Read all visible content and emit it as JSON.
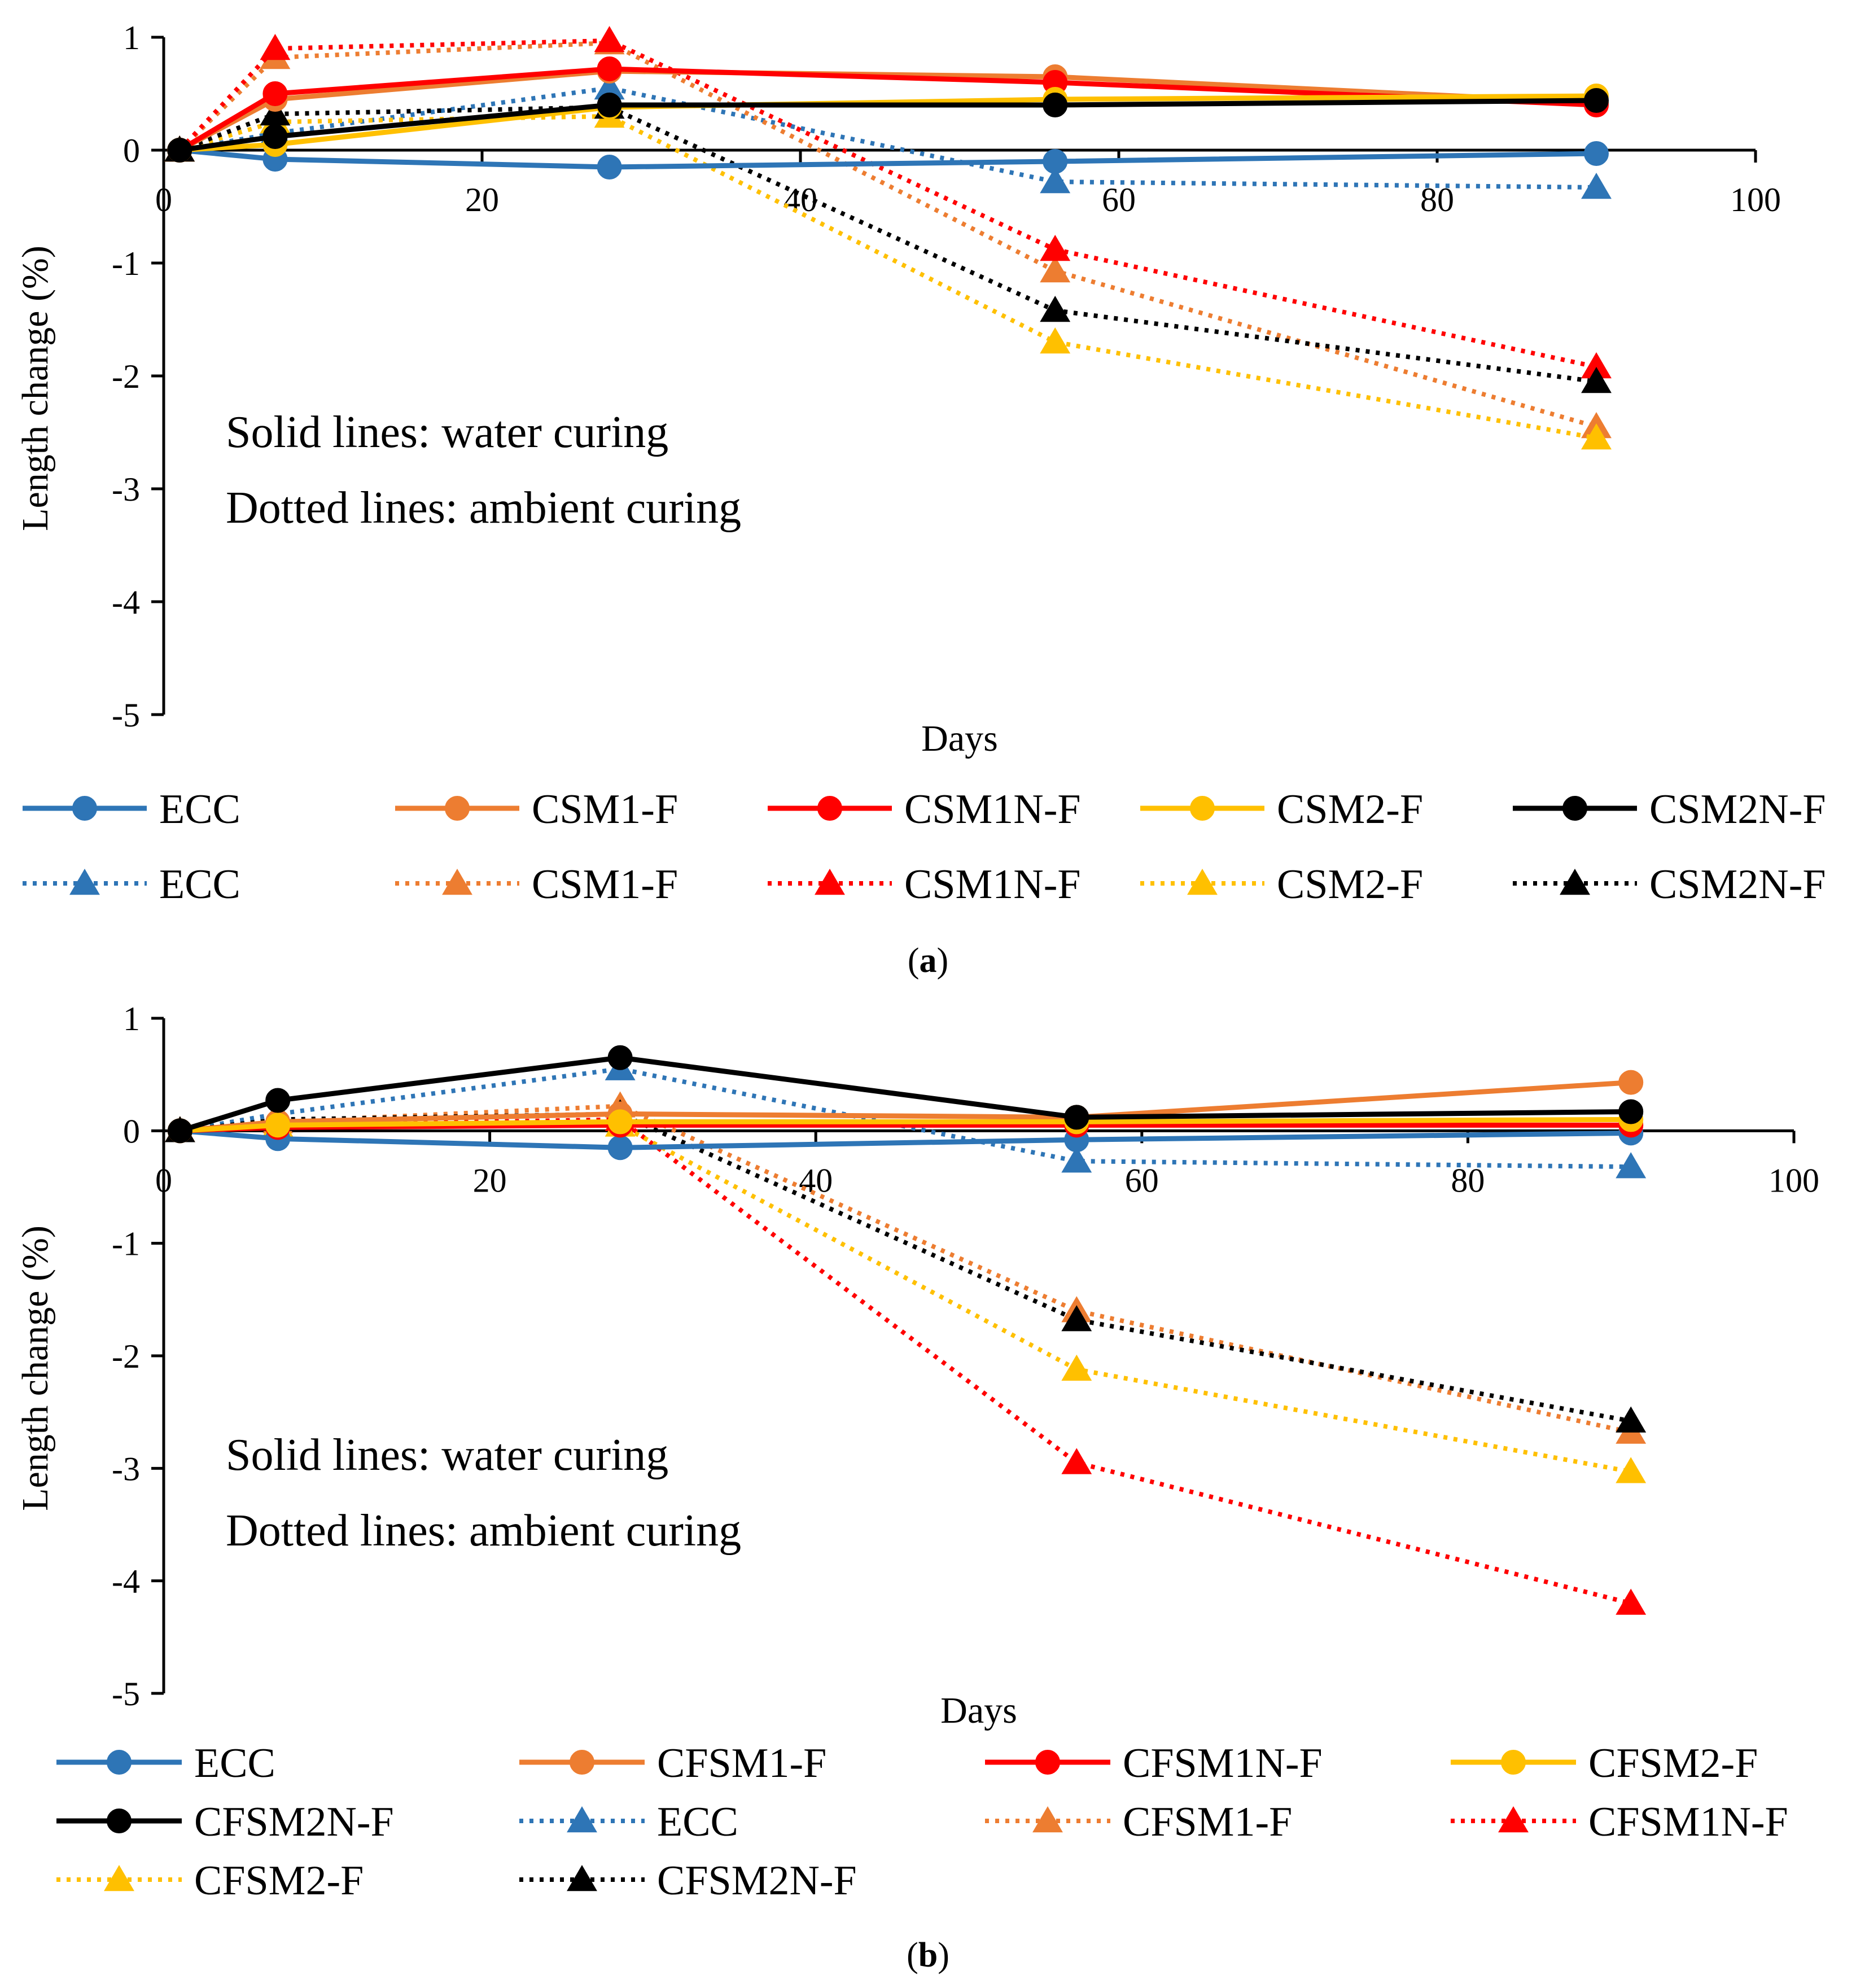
{
  "figure": {
    "note_lines": [
      "Solid lines: water curing",
      "Dotted lines: ambient curing"
    ]
  },
  "colors": {
    "ECC": "#2E75B6",
    "M1": "#ED7D31",
    "M1N": "#FF0000",
    "M2": "#FFC000",
    "M2N": "#000000"
  },
  "chart_data": [
    {
      "type": "line",
      "panel": "a",
      "caption": {
        "open": "(",
        "letter": "a",
        "close": ")"
      },
      "xlabel": "Days",
      "ylabel": "Length change (%)",
      "xlim": [
        0,
        100
      ],
      "ylim": [
        -5,
        1
      ],
      "xticks": [
        0,
        20,
        40,
        60,
        80,
        100
      ],
      "yticks": [
        1,
        0,
        -1,
        -2,
        -3,
        -4,
        -5
      ],
      "legend_columns": 5,
      "series": [
        {
          "name": "ECC",
          "color_key": "ECC",
          "style": "solid",
          "marker": "circle",
          "x": [
            1,
            7,
            28,
            56,
            90
          ],
          "y": [
            0,
            -0.08,
            -0.15,
            -0.1,
            -0.03
          ]
        },
        {
          "name": "CSM1-F",
          "color_key": "M1",
          "style": "solid",
          "marker": "circle",
          "x": [
            1,
            7,
            28,
            56,
            90
          ],
          "y": [
            0,
            0.45,
            0.7,
            0.65,
            0.42
          ]
        },
        {
          "name": "CSM1N-F",
          "color_key": "M1N",
          "style": "solid",
          "marker": "circle",
          "x": [
            1,
            7,
            28,
            56,
            90
          ],
          "y": [
            0,
            0.5,
            0.72,
            0.6,
            0.4
          ]
        },
        {
          "name": "CSM2-F",
          "color_key": "M2",
          "style": "solid",
          "marker": "circle",
          "x": [
            1,
            7,
            28,
            56,
            90
          ],
          "y": [
            0,
            0.05,
            0.38,
            0.45,
            0.48
          ]
        },
        {
          "name": "CSM2N-F",
          "color_key": "M2N",
          "style": "solid",
          "marker": "circle",
          "x": [
            1,
            7,
            28,
            56,
            90
          ],
          "y": [
            0,
            0.12,
            0.4,
            0.4,
            0.44
          ]
        },
        {
          "name": "ECC",
          "color_key": "ECC",
          "style": "dotted",
          "marker": "triangle",
          "x": [
            1,
            7,
            28,
            56,
            90
          ],
          "y": [
            0,
            0.15,
            0.55,
            -0.28,
            -0.33
          ]
        },
        {
          "name": "CSM1-F",
          "color_key": "M1",
          "style": "dotted",
          "marker": "triangle",
          "x": [
            1,
            7,
            28,
            56,
            90
          ],
          "y": [
            0,
            0.82,
            0.95,
            -1.07,
            -2.45
          ]
        },
        {
          "name": "CSM1N-F",
          "color_key": "M1N",
          "style": "dotted",
          "marker": "triangle",
          "x": [
            1,
            7,
            28,
            56,
            90
          ],
          "y": [
            0,
            0.9,
            0.97,
            -0.88,
            -1.92
          ]
        },
        {
          "name": "CSM2-F",
          "color_key": "M2",
          "style": "dotted",
          "marker": "triangle",
          "x": [
            1,
            7,
            28,
            56,
            90
          ],
          "y": [
            0,
            0.25,
            0.3,
            -1.7,
            -2.55
          ]
        },
        {
          "name": "CSM2N-F",
          "color_key": "M2N",
          "style": "dotted",
          "marker": "triangle",
          "x": [
            1,
            7,
            28,
            56,
            90
          ],
          "y": [
            0,
            0.32,
            0.38,
            -1.42,
            -2.05
          ]
        }
      ]
    },
    {
      "type": "line",
      "panel": "b",
      "caption": {
        "open": "(",
        "letter": "b",
        "close": ")"
      },
      "xlabel": "Days",
      "ylabel": "Length change (%)",
      "xlim": [
        0,
        100
      ],
      "ylim": [
        -5,
        1
      ],
      "xticks": [
        0,
        20,
        40,
        60,
        80,
        100
      ],
      "yticks": [
        1,
        0,
        -1,
        -2,
        -3,
        -4,
        -5
      ],
      "legend_columns": 4,
      "series": [
        {
          "name": "ECC",
          "color_key": "ECC",
          "style": "solid",
          "marker": "circle",
          "x": [
            1,
            7,
            28,
            56,
            90
          ],
          "y": [
            0,
            -0.07,
            -0.15,
            -0.08,
            -0.02
          ]
        },
        {
          "name": "CFSM1-F",
          "color_key": "M1",
          "style": "solid",
          "marker": "circle",
          "x": [
            1,
            7,
            28,
            56,
            90
          ],
          "y": [
            0,
            0.08,
            0.15,
            0.12,
            0.43
          ]
        },
        {
          "name": "CFSM1N-F",
          "color_key": "M1N",
          "style": "solid",
          "marker": "circle",
          "x": [
            1,
            7,
            28,
            56,
            90
          ],
          "y": [
            0,
            0.03,
            0.05,
            0.05,
            0.05
          ]
        },
        {
          "name": "CFSM2-F",
          "color_key": "M2",
          "style": "solid",
          "marker": "circle",
          "x": [
            1,
            7,
            28,
            56,
            90
          ],
          "y": [
            0,
            0.05,
            0.08,
            0.08,
            0.1
          ]
        },
        {
          "name": "CFSM2N-F",
          "color_key": "M2N",
          "style": "solid",
          "marker": "circle",
          "x": [
            1,
            7,
            28,
            56,
            90
          ],
          "y": [
            0,
            0.27,
            0.65,
            0.12,
            0.17
          ]
        },
        {
          "name": "ECC",
          "color_key": "ECC",
          "style": "dotted",
          "marker": "triangle",
          "x": [
            1,
            7,
            28,
            56,
            90
          ],
          "y": [
            0,
            0.15,
            0.55,
            -0.27,
            -0.32
          ]
        },
        {
          "name": "CFSM1-F",
          "color_key": "M1",
          "style": "dotted",
          "marker": "triangle",
          "x": [
            1,
            7,
            28,
            56,
            90
          ],
          "y": [
            0,
            0.08,
            0.22,
            -1.6,
            -2.68
          ]
        },
        {
          "name": "CFSM1N-F",
          "color_key": "M1N",
          "style": "dotted",
          "marker": "triangle",
          "x": [
            1,
            7,
            28,
            56,
            90
          ],
          "y": [
            0,
            0.05,
            0.1,
            -2.95,
            -4.2
          ]
        },
        {
          "name": "CFSM2-F",
          "color_key": "M2",
          "style": "dotted",
          "marker": "triangle",
          "x": [
            1,
            7,
            28,
            56,
            90
          ],
          "y": [
            0,
            0.05,
            0.05,
            -2.12,
            -3.03
          ]
        },
        {
          "name": "CFSM2N-F",
          "color_key": "M2N",
          "style": "dotted",
          "marker": "triangle",
          "x": [
            1,
            7,
            28,
            56,
            90
          ],
          "y": [
            0,
            0.1,
            0.15,
            -1.68,
            -2.58
          ]
        }
      ]
    }
  ]
}
